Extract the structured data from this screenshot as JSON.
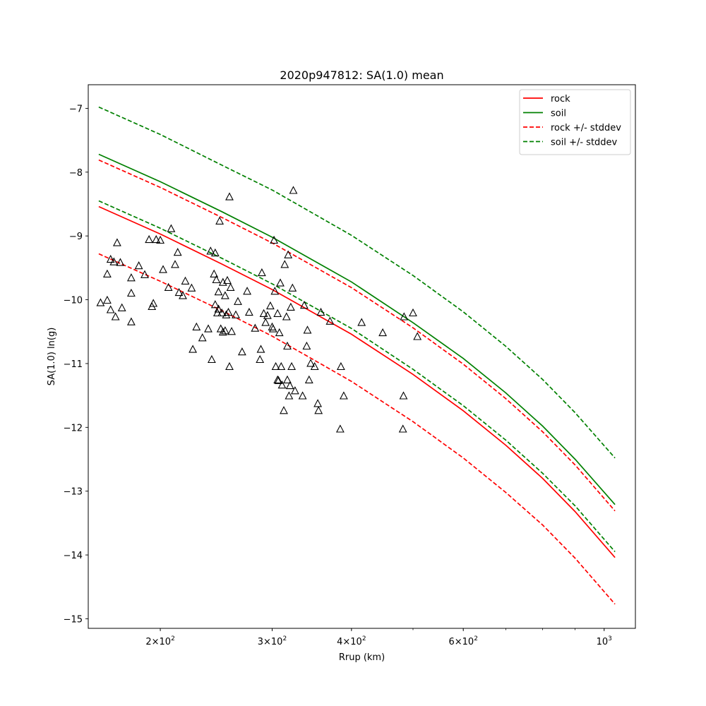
{
  "chart_data": {
    "type": "scatter",
    "title": "2020p947812: SA(1.0) mean",
    "xlabel": "Rrup (km)",
    "ylabel": "SA(1.0) ln(g)",
    "x_scale": "log",
    "xlim": [
      154,
      1120
    ],
    "ylim": [
      -15.15,
      -6.63
    ],
    "grid": false,
    "legend_position": "top-right",
    "x_ticks": [
      {
        "value": 200,
        "label": "2×10²"
      },
      {
        "value": 300,
        "label": "3×10²"
      },
      {
        "value": 400,
        "label": "4×10²"
      },
      {
        "value": 600,
        "label": "6×10²"
      },
      {
        "value": 1000,
        "label": "10³"
      }
    ],
    "y_ticks": [
      -15,
      -14,
      -13,
      -12,
      -11,
      -10,
      -9,
      -8,
      -7
    ],
    "series": [
      {
        "name": "rock",
        "style": "solid",
        "color": "#ff0000",
        "x": [
          160,
          200,
          250,
          300,
          400,
          500,
          600,
          700,
          800,
          900,
          1040
        ],
        "y": [
          -8.54,
          -8.97,
          -9.44,
          -9.84,
          -10.54,
          -11.17,
          -11.74,
          -12.28,
          -12.8,
          -13.32,
          -14.04
        ]
      },
      {
        "name": "soil",
        "style": "solid",
        "color": "#008000",
        "x": [
          160,
          200,
          250,
          300,
          400,
          500,
          600,
          700,
          800,
          900,
          1040
        ],
        "y": [
          -7.72,
          -8.15,
          -8.62,
          -9.02,
          -9.72,
          -10.36,
          -10.92,
          -11.46,
          -11.98,
          -12.5,
          -13.21
        ]
      },
      {
        "name": "rock +/- stddev",
        "style": "dashed",
        "color": "#ff0000",
        "band": [
          {
            "x": [
              160,
              200,
              250,
              300,
              400,
              500,
              600,
              700,
              800,
              900,
              1040
            ],
            "y": [
              -7.81,
              -8.24,
              -8.71,
              -9.11,
              -9.81,
              -10.44,
              -11.01,
              -11.55,
              -12.07,
              -12.59,
              -13.31
            ]
          },
          {
            "x": [
              160,
              200,
              250,
              300,
              400,
              500,
              600,
              700,
              800,
              900,
              1040
            ],
            "y": [
              -9.28,
              -9.71,
              -10.17,
              -10.57,
              -11.28,
              -11.91,
              -12.48,
              -13.02,
              -13.53,
              -14.05,
              -14.77
            ]
          }
        ]
      },
      {
        "name": "soil +/- stddev",
        "style": "dashed",
        "color": "#008000",
        "band": [
          {
            "x": [
              160,
              200,
              250,
              300,
              400,
              500,
              600,
              700,
              800,
              900,
              1040
            ],
            "y": [
              -6.98,
              -7.41,
              -7.89,
              -8.28,
              -8.99,
              -9.62,
              -10.19,
              -10.73,
              -11.25,
              -11.77,
              -12.48
            ]
          },
          {
            "x": [
              160,
              200,
              250,
              300,
              400,
              500,
              600,
              700,
              800,
              900,
              1040
            ],
            "y": [
              -8.45,
              -8.88,
              -9.35,
              -9.75,
              -10.45,
              -11.09,
              -11.66,
              -12.2,
              -12.72,
              -13.23,
              -13.95
            ]
          }
        ]
      },
      {
        "name": "",
        "style": "marker",
        "marker": "triangle-open",
        "color": "#000000",
        "points": [
          [
            161,
            -10.05
          ],
          [
            165,
            -10.01
          ],
          [
            165,
            -9.6
          ],
          [
            167,
            -10.16
          ],
          [
            167,
            -9.37
          ],
          [
            169,
            -9.41
          ],
          [
            170,
            -10.27
          ],
          [
            171,
            -9.11
          ],
          [
            173,
            -9.42
          ],
          [
            174,
            -10.13
          ],
          [
            180,
            -10.35
          ],
          [
            180,
            -9.9
          ],
          [
            180,
            -9.66
          ],
          [
            185,
            -9.47
          ],
          [
            189,
            -9.61
          ],
          [
            192,
            -9.06
          ],
          [
            194,
            -10.11
          ],
          [
            195,
            -10.06
          ],
          [
            197,
            -9.06
          ],
          [
            200,
            -9.07
          ],
          [
            202,
            -9.53
          ],
          [
            206,
            -9.81
          ],
          [
            208,
            -8.89
          ],
          [
            211,
            -9.45
          ],
          [
            213,
            -9.26
          ],
          [
            214,
            -9.89
          ],
          [
            217,
            -9.94
          ],
          [
            219,
            -9.71
          ],
          [
            224,
            -9.82
          ],
          [
            225,
            -10.78
          ],
          [
            228,
            -10.43
          ],
          [
            233,
            -10.6
          ],
          [
            238,
            -10.46
          ],
          [
            240,
            -9.24
          ],
          [
            241,
            -10.94
          ],
          [
            243,
            -9.6
          ],
          [
            244,
            -10.08
          ],
          [
            244,
            -9.27
          ],
          [
            245,
            -9.69
          ],
          [
            246,
            -10.21
          ],
          [
            247,
            -9.88
          ],
          [
            247,
            -10.15
          ],
          [
            248,
            -8.77
          ],
          [
            249,
            -10.46
          ],
          [
            250,
            -10.21
          ],
          [
            251,
            -10.51
          ],
          [
            251,
            -9.73
          ],
          [
            253,
            -10.49
          ],
          [
            253,
            -9.94
          ],
          [
            254,
            -10.24
          ],
          [
            255,
            -9.7
          ],
          [
            256,
            -10.2
          ],
          [
            257,
            -11.05
          ],
          [
            257,
            -8.39
          ],
          [
            258,
            -9.81
          ],
          [
            259,
            -10.5
          ],
          [
            263,
            -10.24
          ],
          [
            265,
            -10.03
          ],
          [
            269,
            -10.82
          ],
          [
            274,
            -9.87
          ],
          [
            276,
            -10.2
          ],
          [
            282,
            -10.45
          ],
          [
            287,
            -10.94
          ],
          [
            288,
            -10.78
          ],
          [
            289,
            -9.58
          ],
          [
            291,
            -10.22
          ],
          [
            293,
            -10.36
          ],
          [
            295,
            -10.25
          ],
          [
            298,
            -10.1
          ],
          [
            300,
            -10.43
          ],
          [
            301,
            -10.46
          ],
          [
            302,
            -9.07
          ],
          [
            303,
            -9.87
          ],
          [
            304,
            -11.05
          ],
          [
            306,
            -10.22
          ],
          [
            306,
            -11.26
          ],
          [
            307,
            -11.27
          ],
          [
            308,
            -10.52
          ],
          [
            309,
            -9.74
          ],
          [
            310,
            -11.05
          ],
          [
            311,
            -11.34
          ],
          [
            313,
            -11.74
          ],
          [
            314,
            -9.45
          ],
          [
            316,
            -10.27
          ],
          [
            317,
            -10.73
          ],
          [
            317,
            -11.26
          ],
          [
            318,
            -9.3
          ],
          [
            319,
            -11.51
          ],
          [
            320,
            -11.35
          ],
          [
            321,
            -10.12
          ],
          [
            322,
            -11.05
          ],
          [
            323,
            -9.82
          ],
          [
            324,
            -8.29
          ],
          [
            326,
            -11.43
          ],
          [
            335,
            -11.51
          ],
          [
            337,
            -10.09
          ],
          [
            340,
            -10.73
          ],
          [
            341,
            -10.48
          ],
          [
            343,
            -11.26
          ],
          [
            345,
            -11.0
          ],
          [
            350,
            -11.05
          ],
          [
            354,
            -11.63
          ],
          [
            355,
            -11.74
          ],
          [
            358,
            -10.2
          ],
          [
            370,
            -10.34
          ],
          [
            384,
            -12.03
          ],
          [
            385,
            -11.05
          ],
          [
            389,
            -11.51
          ],
          [
            415,
            -10.36
          ],
          [
            448,
            -10.52
          ],
          [
            482,
            -12.03
          ],
          [
            483,
            -11.51
          ],
          [
            484,
            -10.27
          ],
          [
            500,
            -10.21
          ],
          [
            508,
            -10.58
          ]
        ]
      }
    ]
  }
}
